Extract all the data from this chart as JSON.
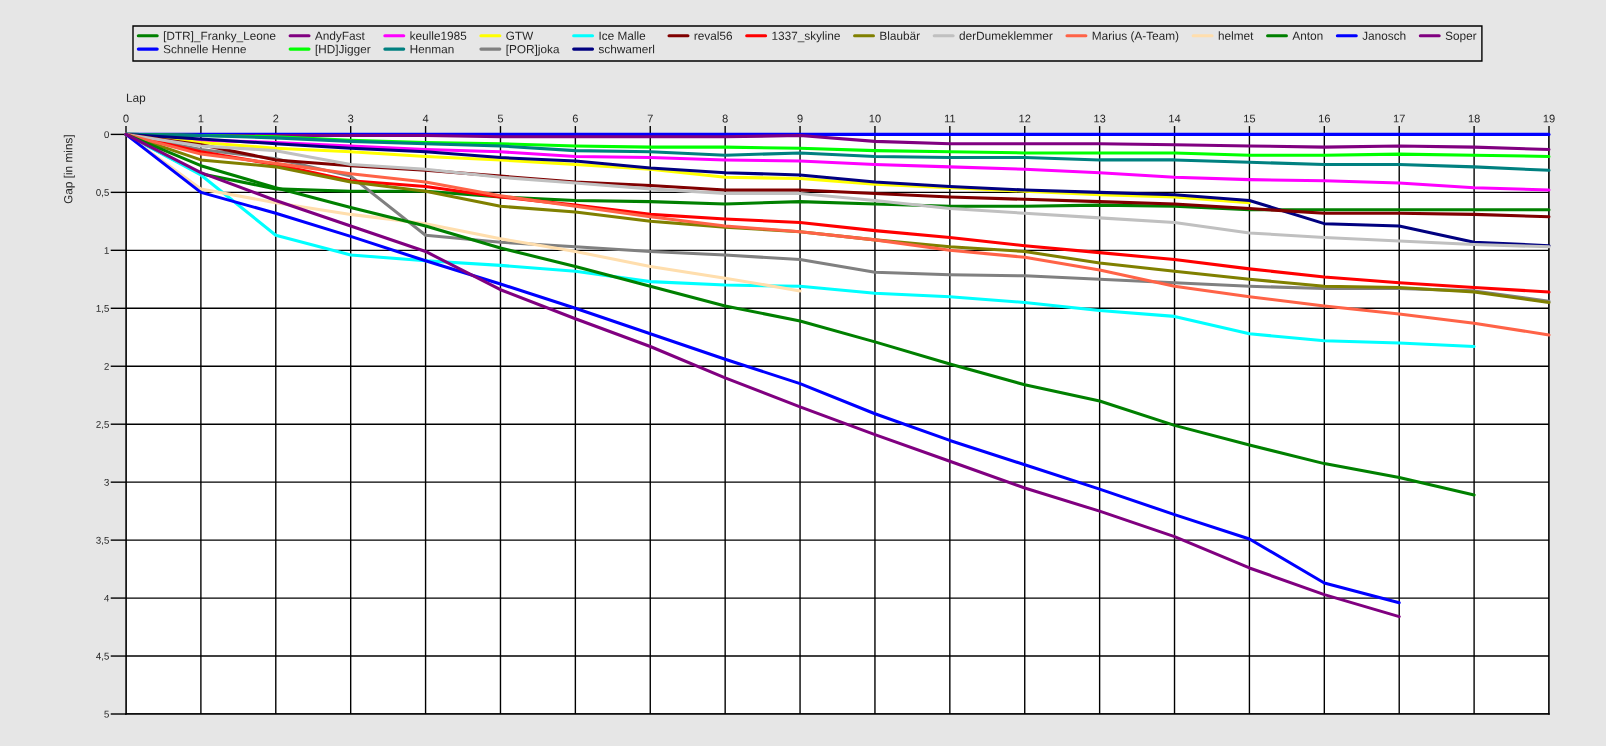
{
  "chart_data": {
    "type": "line",
    "xlabel": "Lap",
    "ylabel": "Gap [in mins]",
    "x": [
      0,
      1,
      2,
      3,
      4,
      5,
      6,
      7,
      8,
      9,
      10,
      11,
      12,
      13,
      14,
      15,
      16,
      17,
      18,
      19
    ],
    "xlim": [
      0,
      19
    ],
    "xticks": [
      0,
      1,
      2,
      3,
      4,
      5,
      6,
      7,
      8,
      9,
      10,
      11,
      12,
      13,
      14,
      15,
      16,
      17,
      18,
      19
    ],
    "ylim": [
      5,
      0
    ],
    "yticks": [
      0,
      {
        "value": 0.5,
        "label": "0,5"
      },
      1,
      {
        "value": 1.5,
        "label": "1,5"
      },
      2,
      {
        "value": 2.5,
        "label": "2,5"
      },
      3,
      {
        "value": 3.5,
        "label": "3,5"
      },
      4,
      {
        "value": 4.5,
        "label": "4,5"
      },
      5
    ],
    "grid": true,
    "legend": "top",
    "marker": "none",
    "line_style": "solid",
    "series": [
      {
        "name": "[DTR]_Franky_Leone",
        "color": "#008000",
        "values": [
          0,
          0.34,
          0.47,
          0.49,
          0.49,
          0.54,
          0.57,
          0.58,
          0.6,
          0.58,
          0.6,
          0.62,
          0.62,
          0.61,
          0.62,
          0.65,
          0.65,
          0.65,
          0.65,
          0.65
        ]
      },
      {
        "name": "Schnelle Henne",
        "color": "#0000ff",
        "values": [
          0,
          0,
          0,
          0,
          0,
          0,
          0,
          0,
          0,
          0,
          0,
          0,
          0,
          0,
          0,
          0,
          0,
          0,
          0,
          0
        ]
      },
      {
        "name": "AndyFast",
        "color": "#800080",
        "values": [
          0,
          0.01,
          0.01,
          0.01,
          0.01,
          0.02,
          0.02,
          0.02,
          0.02,
          0.01,
          0.06,
          0.08,
          0.08,
          0.08,
          0.09,
          0.1,
          0.11,
          0.1,
          0.11,
          0.13
        ]
      },
      {
        "name": "[HD]Jigger",
        "color": "#00ff00",
        "values": [
          0,
          0.01,
          0.02,
          0.05,
          0.07,
          0.08,
          0.1,
          0.11,
          0.11,
          0.12,
          0.14,
          0.15,
          0.16,
          0.16,
          0.16,
          0.18,
          0.18,
          0.17,
          0.18,
          0.19
        ]
      },
      {
        "name": "keulle1985",
        "color": "#ff00ff",
        "values": [
          0,
          0.05,
          0.07,
          0.1,
          0.13,
          0.15,
          0.19,
          0.2,
          0.22,
          0.23,
          0.26,
          0.28,
          0.3,
          0.33,
          0.37,
          0.39,
          0.4,
          0.42,
          0.46,
          0.48
        ]
      },
      {
        "name": "Henman",
        "color": "#008080",
        "values": [
          0,
          0.01,
          0.03,
          0.06,
          0.08,
          0.1,
          0.14,
          0.15,
          0.18,
          0.16,
          0.19,
          0.2,
          0.2,
          0.22,
          0.22,
          0.24,
          0.26,
          0.26,
          0.28,
          0.31
        ]
      },
      {
        "name": "GTW",
        "color": "#ffff00",
        "values": [
          0,
          0.07,
          0.12,
          0.15,
          0.19,
          0.22,
          0.26,
          0.3,
          0.37,
          0.38,
          0.43,
          0.46,
          0.49,
          0.52,
          0.54,
          0.59,
          null,
          null,
          null,
          null
        ]
      },
      {
        "name": "[POR]joka",
        "color": "#808080",
        "values": [
          0,
          0.13,
          0.21,
          0.36,
          0.87,
          0.93,
          0.97,
          1.01,
          1.04,
          1.08,
          1.19,
          1.21,
          1.22,
          1.25,
          1.28,
          1.31,
          1.33,
          1.33,
          1.35,
          1.44
        ]
      },
      {
        "name": "Ice Malle",
        "color": "#00ffff",
        "values": [
          0,
          0.35,
          0.87,
          1.04,
          1.09,
          1.13,
          1.18,
          1.27,
          1.3,
          1.31,
          1.37,
          1.4,
          1.45,
          1.52,
          1.57,
          1.72,
          1.78,
          1.8,
          1.83,
          null
        ]
      },
      {
        "name": "schwamerl",
        "color": "#000080",
        "values": [
          0,
          0.04,
          0.08,
          0.12,
          0.15,
          0.2,
          0.23,
          0.29,
          0.33,
          0.35,
          0.41,
          0.45,
          0.48,
          0.5,
          0.52,
          0.57,
          0.77,
          0.79,
          0.93,
          0.96
        ]
      },
      {
        "name": "reval56",
        "color": "#800000",
        "values": [
          0,
          0.09,
          0.22,
          0.27,
          0.31,
          0.36,
          0.41,
          0.44,
          0.48,
          0.48,
          0.51,
          0.54,
          0.56,
          0.58,
          0.6,
          0.64,
          0.68,
          0.68,
          0.69,
          0.71
        ]
      },
      {
        "name": "1337_skyline",
        "color": "#ff0000",
        "values": [
          0,
          0.15,
          0.26,
          0.4,
          0.45,
          0.54,
          0.61,
          0.69,
          0.73,
          0.76,
          0.83,
          0.89,
          0.96,
          1.02,
          1.08,
          1.16,
          1.23,
          1.28,
          1.32,
          1.36
        ]
      },
      {
        "name": "Blaubär",
        "color": "#808000",
        "values": [
          0,
          0.22,
          0.28,
          0.41,
          0.49,
          0.62,
          0.67,
          0.75,
          0.8,
          0.84,
          0.91,
          0.97,
          1.01,
          1.11,
          1.18,
          1.25,
          1.31,
          1.32,
          1.36,
          1.45
        ]
      },
      {
        "name": "derDumeklemmer",
        "color": "#c0c0c0",
        "values": [
          0,
          0.1,
          0.14,
          0.26,
          0.3,
          0.37,
          0.42,
          0.47,
          0.51,
          0.51,
          0.57,
          0.64,
          0.68,
          0.72,
          0.76,
          0.85,
          0.89,
          0.92,
          0.95,
          0.97
        ]
      },
      {
        "name": "Marius (A-Team)",
        "color": "#ff6347",
        "values": [
          0,
          0.17,
          0.25,
          0.34,
          0.41,
          0.53,
          0.62,
          0.71,
          0.79,
          0.84,
          0.91,
          1.0,
          1.06,
          1.17,
          1.31,
          1.4,
          1.48,
          1.55,
          1.63,
          1.73
        ]
      },
      {
        "name": "helmet",
        "color": "#ffdead",
        "values": [
          0,
          0.47,
          0.59,
          0.69,
          0.77,
          0.9,
          1.01,
          1.14,
          1.24,
          1.35,
          null,
          null,
          null,
          null,
          null,
          null,
          null,
          null,
          null,
          null
        ]
      },
      {
        "name": "Anton",
        "color": "#008000",
        "values": [
          0,
          0.27,
          0.46,
          0.63,
          0.79,
          0.98,
          1.14,
          1.31,
          1.48,
          1.61,
          1.79,
          1.98,
          2.16,
          2.3,
          2.51,
          2.68,
          2.84,
          2.96,
          3.11,
          null
        ]
      },
      {
        "name": "Janosch",
        "color": "#0000ff",
        "values": [
          0,
          0.5,
          0.68,
          0.88,
          1.09,
          1.29,
          1.5,
          1.72,
          1.94,
          2.15,
          2.41,
          2.64,
          2.85,
          3.06,
          3.28,
          3.49,
          3.87,
          4.04,
          null,
          null
        ]
      },
      {
        "name": "Soper",
        "color": "#800080",
        "values": [
          0,
          0.33,
          0.57,
          0.79,
          1.01,
          1.34,
          1.59,
          1.83,
          2.1,
          2.35,
          2.59,
          2.82,
          3.05,
          3.25,
          3.47,
          3.74,
          3.97,
          4.16,
          null,
          null
        ]
      }
    ]
  }
}
